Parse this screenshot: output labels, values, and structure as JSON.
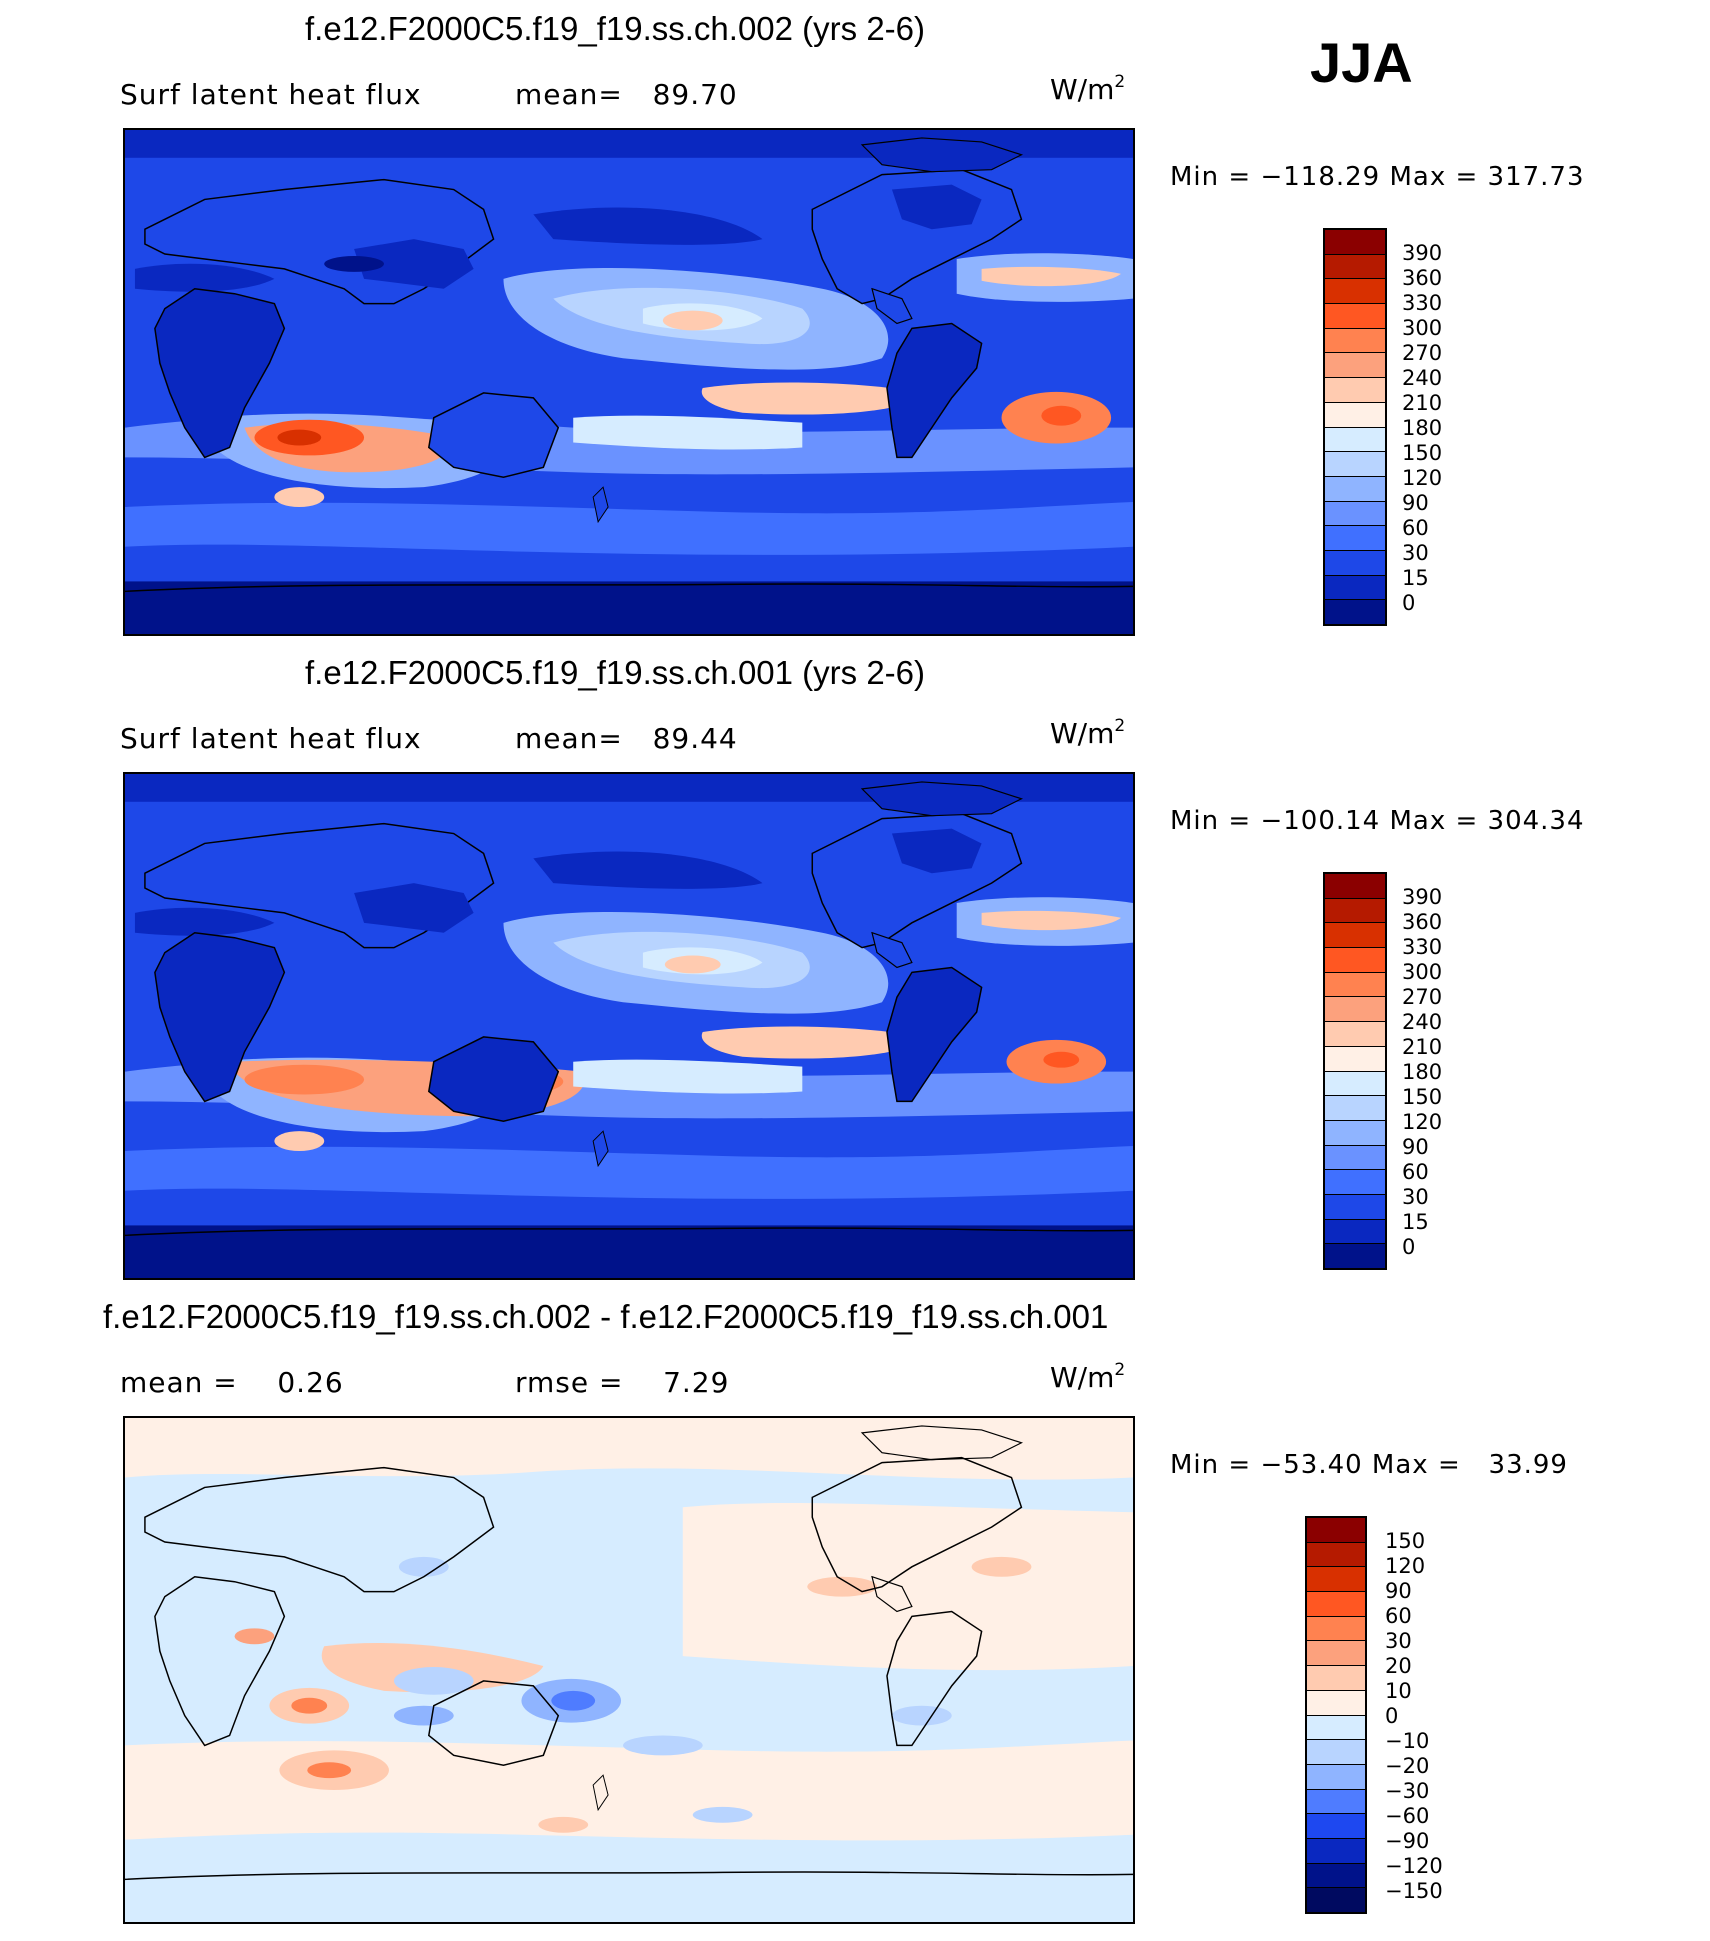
{
  "season": "JJA",
  "panels": [
    {
      "title": "f.e12.F2000C5.f19_f19.ss.ch.002 (yrs 2-6)",
      "left_text": "Surf latent heat flux",
      "right_text": "mean=   89.70",
      "units_base": "W/m",
      "units_exp": "2",
      "minmax": "Min = −118.29 Max = 317.73",
      "field": "abs"
    },
    {
      "title": "f.e12.F2000C5.f19_f19.ss.ch.001 (yrs 2-6)",
      "left_text": "Surf latent heat flux",
      "right_text": "mean=   89.44",
      "units_base": "W/m",
      "units_exp": "2",
      "minmax": "Min = −100.14 Max = 304.34",
      "field": "abs"
    },
    {
      "title": "f.e12.F2000C5.f19_f19.ss.ch.002 - f.e12.F2000C5.f19_f19.ss.ch.001",
      "left_text": "mean =    0.26",
      "right_text": "rmse =    7.29",
      "units_base": "W/m",
      "units_exp": "2",
      "minmax": "Min = −53.40 Max =   33.99",
      "field": "diff"
    }
  ],
  "colorbars": {
    "abs": {
      "labels": [
        "390",
        "360",
        "330",
        "300",
        "270",
        "240",
        "210",
        "180",
        "150",
        "120",
        "90",
        "60",
        "30",
        "15",
        "0"
      ],
      "colors": [
        "#8b0000",
        "#b51a00",
        "#d83000",
        "#ff5722",
        "#ff8250",
        "#fca17d",
        "#ffcbb0",
        "#fff0e6",
        "#d6ecff",
        "#b8d4ff",
        "#8fb4ff",
        "#6a92ff",
        "#4070ff",
        "#1e48e8",
        "#0a28c0",
        "#00128a"
      ]
    },
    "diff": {
      "labels": [
        "150",
        "120",
        "90",
        "60",
        "30",
        "20",
        "10",
        "0",
        "−10",
        "−20",
        "−30",
        "−60",
        "−90",
        "−120",
        "−150"
      ],
      "colors": [
        "#8b0000",
        "#b51a00",
        "#d83000",
        "#ff5722",
        "#ff8250",
        "#fca17d",
        "#ffcbb0",
        "#fff0e6",
        "#d6ecff",
        "#b8d4ff",
        "#8fb4ff",
        "#4f7cff",
        "#1e48f0",
        "#0a28c0",
        "#00128a",
        "#000a60"
      ]
    }
  }
}
